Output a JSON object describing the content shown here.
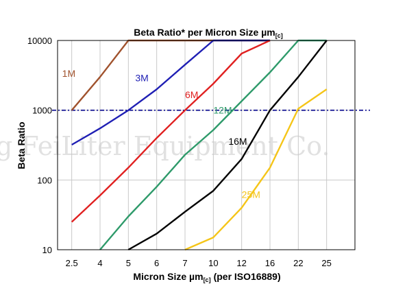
{
  "chart_data": {
    "type": "line",
    "title": "Beta Ratio* per Micron Size µm",
    "title_subscript": "[c]",
    "xlabel": "Micron Size µm",
    "xlabel_subscript": "[c]",
    "xlabel_suffix": "(per ISO16889)",
    "ylabel": "Beta Ratio",
    "y_scale": "log",
    "ylim": [
      10,
      10000
    ],
    "categories": [
      "2.5",
      "4",
      "5",
      "6",
      "7",
      "10",
      "12",
      "16",
      "22",
      "25"
    ],
    "y_ticks": [
      "10",
      "100",
      "1000",
      "10000"
    ],
    "grid": true,
    "reference_line": {
      "y": 1000,
      "style": "dash-dot",
      "color": "#00008b"
    },
    "watermark": "g FeiLiter Equipment Co.",
    "series": [
      {
        "name": "1M",
        "color": "#a0522d",
        "x": [
          "2.5",
          "4",
          "5",
          "6",
          "7",
          "10",
          "12",
          "16"
        ],
        "y": [
          1000,
          3000,
          10000,
          10000,
          10000,
          10000,
          10000,
          10000
        ]
      },
      {
        "name": "3M",
        "color": "#1f1fb4",
        "x": [
          "2.5",
          "4",
          "5",
          "6",
          "7",
          "10",
          "12",
          "16"
        ],
        "y": [
          320,
          550,
          1000,
          2000,
          4500,
          10000,
          10000,
          10000
        ]
      },
      {
        "name": "6M",
        "color": "#e02020",
        "x": [
          "2.5",
          "4",
          "5",
          "6",
          "7",
          "10",
          "12",
          "16"
        ],
        "y": [
          25,
          60,
          150,
          400,
          1000,
          2400,
          6500,
          10000
        ]
      },
      {
        "name": "12M",
        "color": "#2e9a6a",
        "x": [
          "4",
          "5",
          "6",
          "7",
          "10",
          "12",
          "16",
          "22",
          "25"
        ],
        "y": [
          10,
          30,
          80,
          230,
          520,
          1350,
          3500,
          10000,
          10000
        ]
      },
      {
        "name": "16M",
        "color": "#000000",
        "x": [
          "5",
          "6",
          "7",
          "10",
          "12",
          "16",
          "22",
          "25"
        ],
        "y": [
          10,
          17,
          35,
          70,
          200,
          1000,
          3000,
          10000
        ]
      },
      {
        "name": "25M",
        "color": "#f5c518",
        "x": [
          "7",
          "10",
          "12",
          "16",
          "22",
          "25"
        ],
        "y": [
          10,
          15,
          40,
          150,
          1050,
          2000
        ]
      }
    ]
  }
}
